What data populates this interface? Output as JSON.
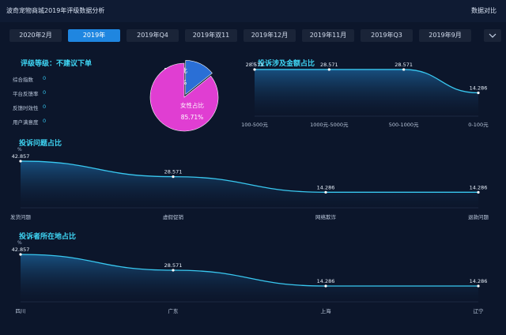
{
  "header": {
    "app_title": "波奇宠物商城2019年评级数据分析",
    "compare_label": "数据对比"
  },
  "tabs": [
    "2020年2月",
    "2019年",
    "2019年Q4",
    "2019年双11",
    "2019年12月",
    "2019年11月",
    "2019年Q3",
    "2019年9月"
  ],
  "active_tab": 1,
  "more_icon": "chevron-down-icon",
  "rating": {
    "title": "评级等级：不建议下单",
    "metrics": [
      {
        "label": "综合指数",
        "value": "0"
      },
      {
        "label": "平台反馈率",
        "value": "0"
      },
      {
        "label": "反馈时效性",
        "value": "0"
      },
      {
        "label": "用户满意度",
        "value": "0"
      }
    ]
  },
  "colors": {
    "accent": "#1f86e0",
    "cyan": "#3fd6f5",
    "pie_female": "#e03ed2",
    "pie_male": "#2a6fd6"
  },
  "chart_data": [
    {
      "type": "pie",
      "slices": [
        {
          "name": "男性占比",
          "value": 14.29,
          "label": "14.29%"
        },
        {
          "name": "女性占比",
          "value": 85.71,
          "label": "85.71%"
        }
      ]
    },
    {
      "type": "area",
      "title": "投诉涉及金额占比",
      "ylabel": "%",
      "categories": [
        "100-500元",
        "1000元-5000元",
        "500-1000元",
        "0-100元"
      ],
      "values": [
        28.571,
        28.571,
        28.571,
        14.286
      ],
      "ylim": [
        0,
        30
      ]
    },
    {
      "type": "area",
      "title": "投诉问题占比",
      "ylabel": "%",
      "categories": [
        "发货问题",
        "虚假促销",
        "网络欺诈",
        "退款问题"
      ],
      "values": [
        42.857,
        28.571,
        14.286,
        14.286
      ],
      "ylim": [
        0,
        45
      ]
    },
    {
      "type": "area",
      "title": "投诉者所在地占比",
      "ylabel": "%",
      "categories": [
        "四川",
        "广东",
        "上海",
        "辽宁"
      ],
      "values": [
        42.857,
        28.571,
        14.286,
        14.286
      ],
      "ylim": [
        0,
        45
      ]
    }
  ]
}
